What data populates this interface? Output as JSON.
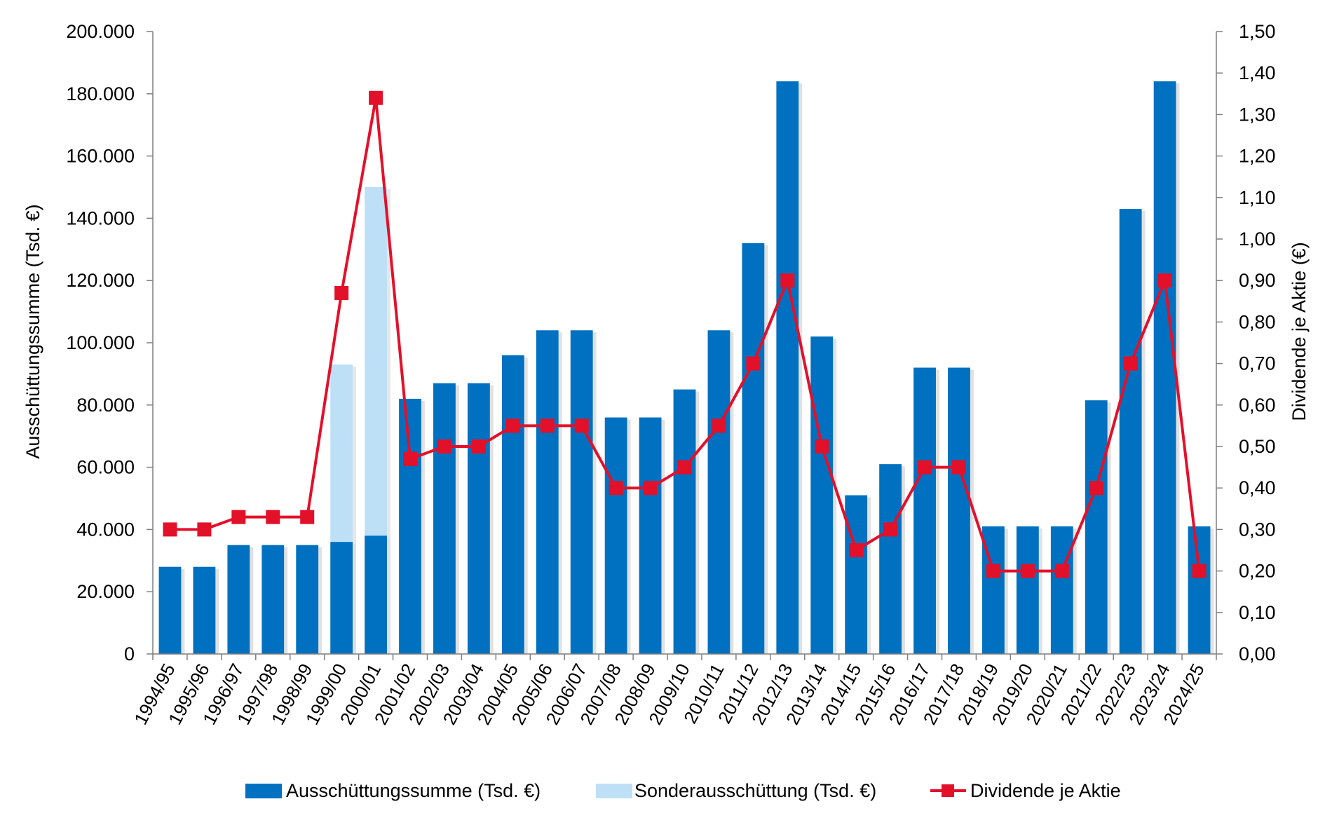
{
  "chart_data": {
    "type": "bar",
    "categories": [
      "1994/95",
      "1995/96",
      "1996/97",
      "1997/98",
      "1998/99",
      "1999/00",
      "2000/01",
      "2001/02",
      "2002/03",
      "2003/04",
      "2004/05",
      "2005/06",
      "2006/07",
      "2007/08",
      "2008/09",
      "2009/10",
      "2010/11",
      "2011/12",
      "2012/13",
      "2013/14",
      "2014/15",
      "2015/16",
      "2016/17",
      "2017/18",
      "2018/19",
      "2019/20",
      "2020/21",
      "2021/22",
      "2022/23",
      "2023/24",
      "2024/25"
    ],
    "series": [
      {
        "name": "Ausschüttungssumme (Tsd. €)",
        "kind": "bar",
        "axis": "left",
        "color": "#0070C0",
        "values": [
          28000,
          28000,
          35000,
          35000,
          35000,
          36000,
          38000,
          82000,
          87000,
          87000,
          96000,
          104000,
          104000,
          76000,
          76000,
          85000,
          104000,
          132000,
          184000,
          102000,
          51000,
          61000,
          92000,
          92000,
          41000,
          41000,
          41000,
          81500,
          143000,
          184000,
          41000
        ]
      },
      {
        "name": "Sonderausschüttung (Tsd. €)",
        "kind": "bar-stacked",
        "axis": "left",
        "color": "#BDE0F7",
        "values": [
          0,
          0,
          0,
          0,
          0,
          57000,
          112000,
          0,
          0,
          0,
          0,
          0,
          0,
          0,
          0,
          0,
          0,
          0,
          0,
          0,
          0,
          0,
          0,
          0,
          0,
          0,
          0,
          0,
          0,
          0,
          0
        ]
      },
      {
        "name": "Dividende je Aktie",
        "kind": "line",
        "axis": "right",
        "color": "#E3102A",
        "values": [
          0.3,
          0.3,
          0.33,
          0.33,
          0.33,
          0.87,
          1.34,
          0.47,
          0.5,
          0.5,
          0.55,
          0.55,
          0.55,
          0.4,
          0.4,
          0.45,
          0.55,
          0.7,
          0.9,
          0.5,
          0.25,
          0.3,
          0.45,
          0.45,
          0.2,
          0.2,
          0.2,
          0.4,
          0.7,
          0.9,
          0.2
        ]
      }
    ],
    "ylabel": "Ausschüttungssumme (Tsd. €)",
    "y2label": "Dividende je Aktie (€)",
    "ylim": [
      0,
      200000
    ],
    "y2lim": [
      0,
      1.5
    ],
    "yticks": [
      "0",
      "20.000",
      "40.000",
      "60.000",
      "80.000",
      "100.000",
      "120.000",
      "140.000",
      "160.000",
      "180.000",
      "200.000"
    ],
    "y2ticks": [
      "0,00",
      "0,10",
      "0,20",
      "0,30",
      "0,40",
      "0,50",
      "0,60",
      "0,70",
      "0,80",
      "0,90",
      "1,00",
      "1,10",
      "1,20",
      "1,30",
      "1,40",
      "1,50"
    ],
    "grid": false,
    "legend_position": "bottom"
  }
}
